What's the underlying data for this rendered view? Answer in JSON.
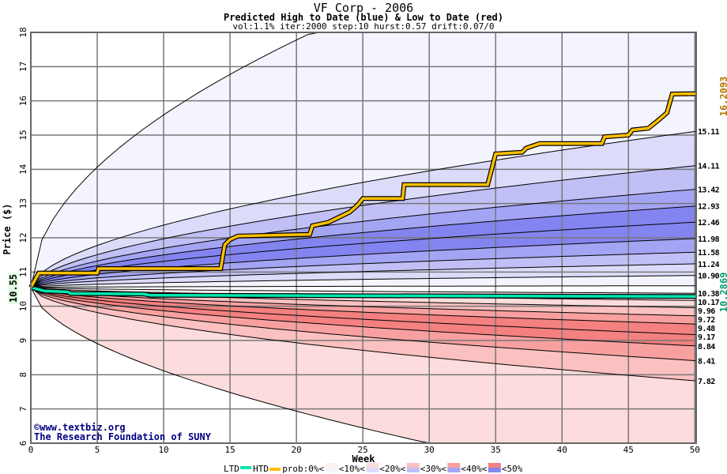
{
  "chart_data": {
    "type": "area",
    "title": "VF Corp - 2006",
    "subtitle": "Predicted High to Date (blue) &  Low to Date (red)",
    "params": "vol:1.1% iter:2000 step:10 hurst:0.57 drift:0.07/0",
    "xlabel": "Week",
    "ylabel": "Price ($)",
    "xlim": [
      0,
      50.1
    ],
    "ylim": [
      6,
      18
    ],
    "x_ticks": [
      0,
      5,
      10,
      15,
      20,
      25,
      30,
      35,
      40,
      45,
      50
    ],
    "y_ticks": [
      6,
      7,
      8,
      9,
      10,
      11,
      12,
      13,
      14,
      15,
      16,
      17,
      18
    ],
    "start_price": 10.55,
    "start_label": "10.55",
    "htd_final_label": "16.2093",
    "ltd_final_label": "10.2869",
    "upper_quantile_end_values": [
      "15.11",
      "14.11",
      "13.42",
      "12.93",
      "12.46",
      "11.98",
      "11.58",
      "11.24",
      "10.90"
    ],
    "lower_quantile_end_values": [
      "10.38",
      "10.17",
      "9.96",
      "9.72",
      "9.48",
      "9.17",
      "8.84",
      "8.41",
      "7.82"
    ],
    "htd_series": [
      [
        0,
        10.55
      ],
      [
        0.6,
        10.97
      ],
      [
        5,
        10.97
      ],
      [
        5.1,
        11.1
      ],
      [
        14.3,
        11.1
      ],
      [
        14.6,
        11.8
      ],
      [
        15,
        11.95
      ],
      [
        15.6,
        12.05
      ],
      [
        21,
        12.1
      ],
      [
        21.2,
        12.35
      ],
      [
        22.4,
        12.45
      ],
      [
        23.2,
        12.6
      ],
      [
        24,
        12.75
      ],
      [
        24.6,
        12.95
      ],
      [
        25,
        13.15
      ],
      [
        28,
        13.15
      ],
      [
        28.1,
        13.55
      ],
      [
        34.4,
        13.55
      ],
      [
        35,
        14.45
      ],
      [
        37,
        14.5
      ],
      [
        37.3,
        14.62
      ],
      [
        38.3,
        14.75
      ],
      [
        43,
        14.75
      ],
      [
        43.2,
        14.95
      ],
      [
        45,
        15.0
      ],
      [
        45.3,
        15.15
      ],
      [
        46.5,
        15.2
      ],
      [
        47.3,
        15.45
      ],
      [
        47.9,
        15.65
      ],
      [
        48.3,
        16.2
      ],
      [
        50.1,
        16.2093
      ]
    ],
    "ltd_series": [
      [
        0,
        10.55
      ],
      [
        1,
        10.45
      ],
      [
        2.8,
        10.42
      ],
      [
        3,
        10.37
      ],
      [
        8.5,
        10.36
      ],
      [
        9,
        10.32
      ],
      [
        21,
        10.31
      ],
      [
        50.1,
        10.2869
      ]
    ],
    "legend": {
      "ltd": "LTD",
      "htd": "HTD",
      "prob": "prob:0%<",
      "bins": [
        "<10%<",
        "<20%<",
        "<30%<",
        "<40%<",
        "<50%"
      ]
    },
    "colors": {
      "htd": "#ffc000",
      "ltd": "#00e8b0",
      "htd_label": "#b07800",
      "ltd_label": "#00a070",
      "blue_bands": [
        "#f4f4fe",
        "#dcdcfa",
        "#c0c0f6",
        "#a4a4f4",
        "#8484f0"
      ],
      "red_bands": [
        "#fdf0f0",
        "#fcdcdc",
        "#fbc0c0",
        "#f8a0a0",
        "#f48080"
      ]
    },
    "watermark": [
      "©www.textbiz.org",
      "The Research Foundation of SUNY"
    ]
  }
}
